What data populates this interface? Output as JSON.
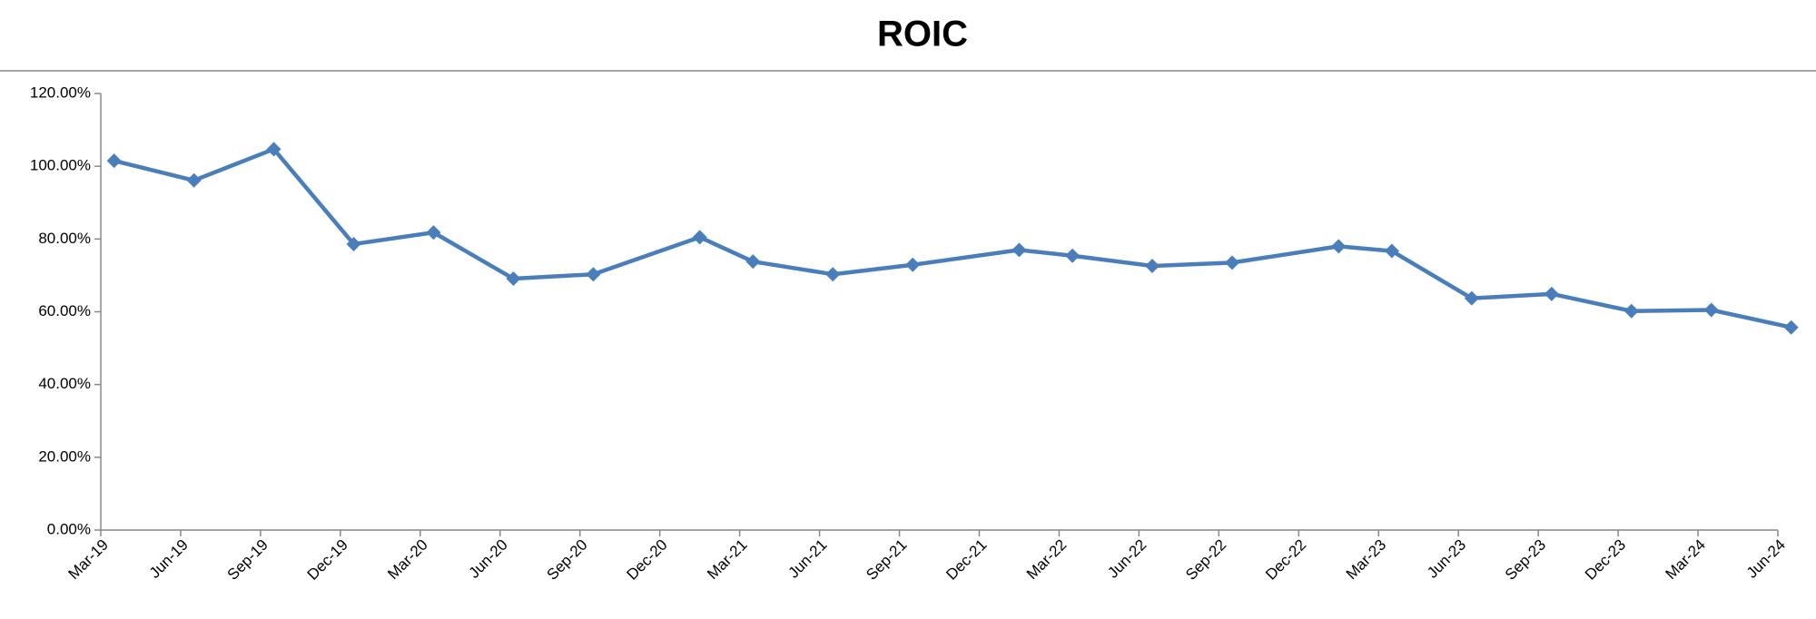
{
  "chart_data": {
    "type": "line",
    "title": "ROIC",
    "x": [
      "2019-03",
      "2019-06",
      "2019-09",
      "2019-12",
      "2020-03",
      "2020-06",
      "2020-09",
      "2021-01",
      "2021-03",
      "2021-06",
      "2021-09",
      "2022-01",
      "2022-03",
      "2022-06",
      "2022-09",
      "2023-01",
      "2023-03",
      "2023-06",
      "2023-09",
      "2023-12",
      "2024-03",
      "2024-06"
    ],
    "series": [
      {
        "name": "ROIC",
        "color": "#4a7ebb",
        "values": [
          101.5,
          96.1,
          104.7,
          78.6,
          81.8,
          69.1,
          70.3,
          80.5,
          73.8,
          70.3,
          72.9,
          77.0,
          75.4,
          72.6,
          73.5,
          78.0,
          76.7,
          63.7,
          64.9,
          60.2,
          60.5,
          55.7
        ]
      }
    ],
    "xlim": [
      "2019-03",
      "2024-06"
    ],
    "xticks": [
      {
        "value": "2019-03",
        "label": "Mar-19"
      },
      {
        "value": "2019-06",
        "label": "Jun-19"
      },
      {
        "value": "2019-09",
        "label": "Sep-19"
      },
      {
        "value": "2019-12",
        "label": "Dec-19"
      },
      {
        "value": "2020-03",
        "label": "Mar-20"
      },
      {
        "value": "2020-06",
        "label": "Jun-20"
      },
      {
        "value": "2020-09",
        "label": "Sep-20"
      },
      {
        "value": "2020-12",
        "label": "Dec-20"
      },
      {
        "value": "2021-03",
        "label": "Mar-21"
      },
      {
        "value": "2021-06",
        "label": "Jun-21"
      },
      {
        "value": "2021-09",
        "label": "Sep-21"
      },
      {
        "value": "2021-12",
        "label": "Dec-21"
      },
      {
        "value": "2022-03",
        "label": "Mar-22"
      },
      {
        "value": "2022-06",
        "label": "Jun-22"
      },
      {
        "value": "2022-09",
        "label": "Sep-22"
      },
      {
        "value": "2022-12",
        "label": "Dec-22"
      },
      {
        "value": "2023-03",
        "label": "Mar-23"
      },
      {
        "value": "2023-06",
        "label": "Jun-23"
      },
      {
        "value": "2023-09",
        "label": "Sep-23"
      },
      {
        "value": "2023-12",
        "label": "Dec-23"
      },
      {
        "value": "2024-03",
        "label": "Mar-24"
      },
      {
        "value": "2024-06",
        "label": "Jun-24"
      }
    ],
    "ylim": [
      0,
      120
    ],
    "yticks": [
      {
        "value": 0,
        "label": "0.00%"
      },
      {
        "value": 20,
        "label": "20.00%"
      },
      {
        "value": 40,
        "label": "40.00%"
      },
      {
        "value": 60,
        "label": "60.00%"
      },
      {
        "value": 80,
        "label": "80.00%"
      },
      {
        "value": 100,
        "label": "100.00%"
      },
      {
        "value": 120,
        "label": "120.00%"
      }
    ],
    "grid": false
  }
}
